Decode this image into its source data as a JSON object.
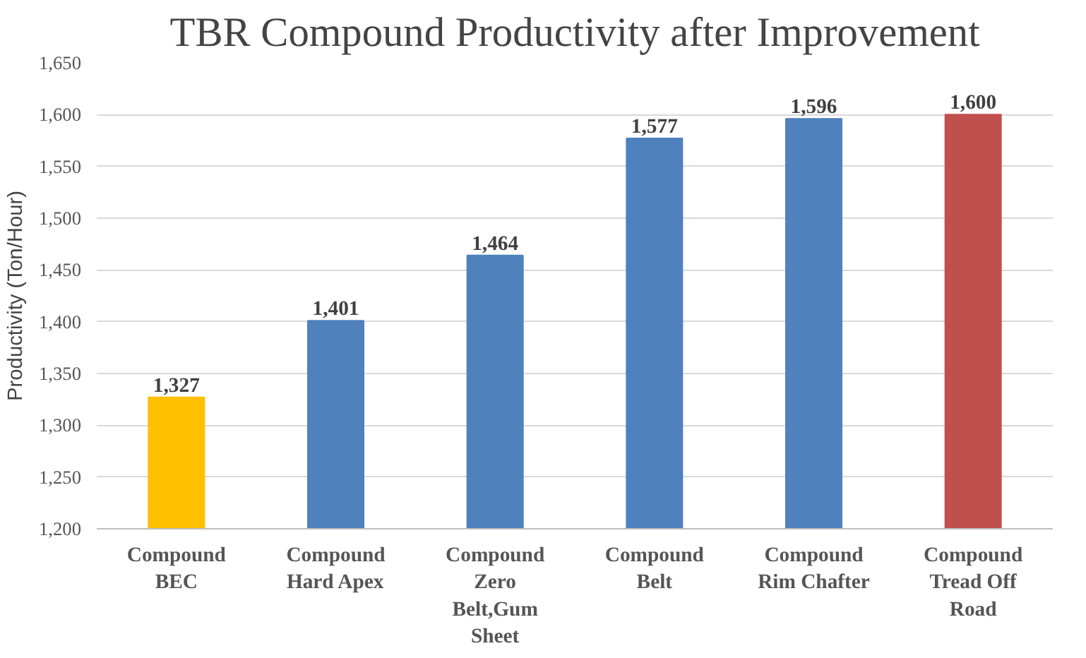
{
  "chart_data": {
    "type": "bar",
    "title": "TBR Compound Productivity after Improvement",
    "ylabel": "Productivity (Ton/Hour)",
    "categories": [
      "Compound BEC",
      "Compound Hard Apex",
      "Compound Zero Belt,Gum Sheet",
      "Compound Belt",
      "Compound Rim Chafter",
      "Compound Tread Off Road"
    ],
    "values": [
      1327,
      1401,
      1464,
      1577,
      1596,
      1600
    ],
    "colors": [
      "#ffc000",
      "#4f81bd",
      "#4f81bd",
      "#4f81bd",
      "#4f81bd",
      "#c0504d"
    ],
    "ylim": [
      1200,
      1650
    ],
    "yticks": [
      {
        "value": 1200,
        "label": "1,200"
      },
      {
        "value": 1250,
        "label": "1,250"
      },
      {
        "value": 1300,
        "label": "1,300"
      },
      {
        "value": 1350,
        "label": "1,350"
      },
      {
        "value": 1400,
        "label": "1,400"
      },
      {
        "value": 1450,
        "label": "1,450"
      },
      {
        "value": 1500,
        "label": "1,500"
      },
      {
        "value": 1550,
        "label": "1,550"
      },
      {
        "value": 1600,
        "label": "1,600"
      },
      {
        "value": 1650,
        "label": "1,650"
      }
    ],
    "value_labels": [
      "1,327",
      "1,401",
      "1,464",
      "1,577",
      "1,596",
      "1,600"
    ],
    "grid": "y"
  }
}
